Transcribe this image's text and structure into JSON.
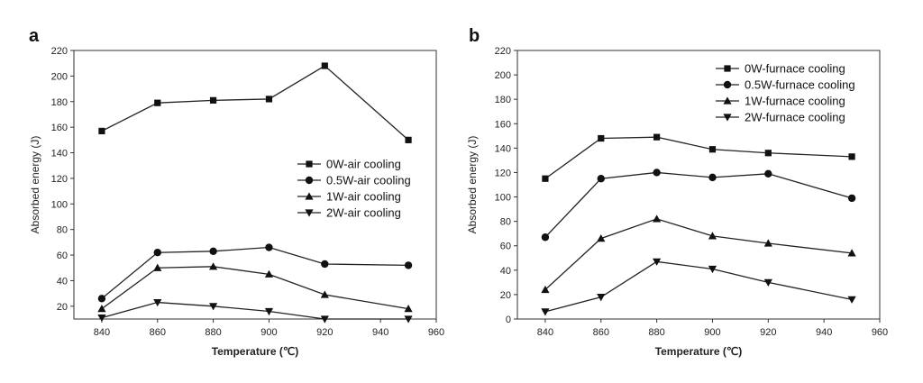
{
  "chart_data": [
    {
      "panel": "a",
      "type": "line",
      "xlabel": "Temperature (℃)",
      "ylabel": "Absorbed energy (J)",
      "xlim": [
        830,
        960
      ],
      "ylim": [
        10,
        220
      ],
      "xticks": [
        840,
        860,
        880,
        900,
        920,
        940,
        960
      ],
      "yticks": [
        20,
        40,
        60,
        80,
        100,
        120,
        140,
        160,
        180,
        200,
        220
      ],
      "legend_position": "center-right",
      "x": [
        840,
        860,
        880,
        900,
        920,
        950
      ],
      "series": [
        {
          "name": "0W-air cooling",
          "marker": "square",
          "values": [
            157,
            179,
            181,
            182,
            208,
            150
          ]
        },
        {
          "name": "0.5W-air cooling",
          "marker": "circle",
          "values": [
            26,
            62,
            63,
            66,
            53,
            52
          ]
        },
        {
          "name": "1W-air cooling",
          "marker": "triangle-up",
          "values": [
            18,
            50,
            51,
            45,
            29,
            18
          ]
        },
        {
          "name": "2W-air cooling",
          "marker": "triangle-down",
          "values": [
            11,
            23,
            20,
            16,
            10,
            10
          ]
        }
      ]
    },
    {
      "panel": "b",
      "type": "line",
      "xlabel": "Temperature (℃)",
      "ylabel": "Absorbed energy (J)",
      "xlim": [
        830,
        960
      ],
      "ylim": [
        0,
        220
      ],
      "xticks": [
        840,
        860,
        880,
        900,
        920,
        940,
        960
      ],
      "yticks": [
        0,
        20,
        40,
        60,
        80,
        100,
        120,
        140,
        160,
        180,
        200,
        220
      ],
      "legend_position": "top-right",
      "x": [
        840,
        860,
        880,
        900,
        920,
        950
      ],
      "series": [
        {
          "name": "0W-furnace cooling",
          "marker": "square",
          "values": [
            115,
            148,
            149,
            139,
            136,
            133
          ]
        },
        {
          "name": "0.5W-furnace cooling",
          "marker": "circle",
          "values": [
            67,
            115,
            120,
            116,
            119,
            99
          ]
        },
        {
          "name": "1W-furnace cooling",
          "marker": "triangle-up",
          "values": [
            24,
            66,
            82,
            68,
            62,
            54
          ]
        },
        {
          "name": "2W-furnace cooling",
          "marker": "triangle-down",
          "values": [
            6,
            18,
            47,
            41,
            30,
            16
          ]
        }
      ]
    }
  ]
}
